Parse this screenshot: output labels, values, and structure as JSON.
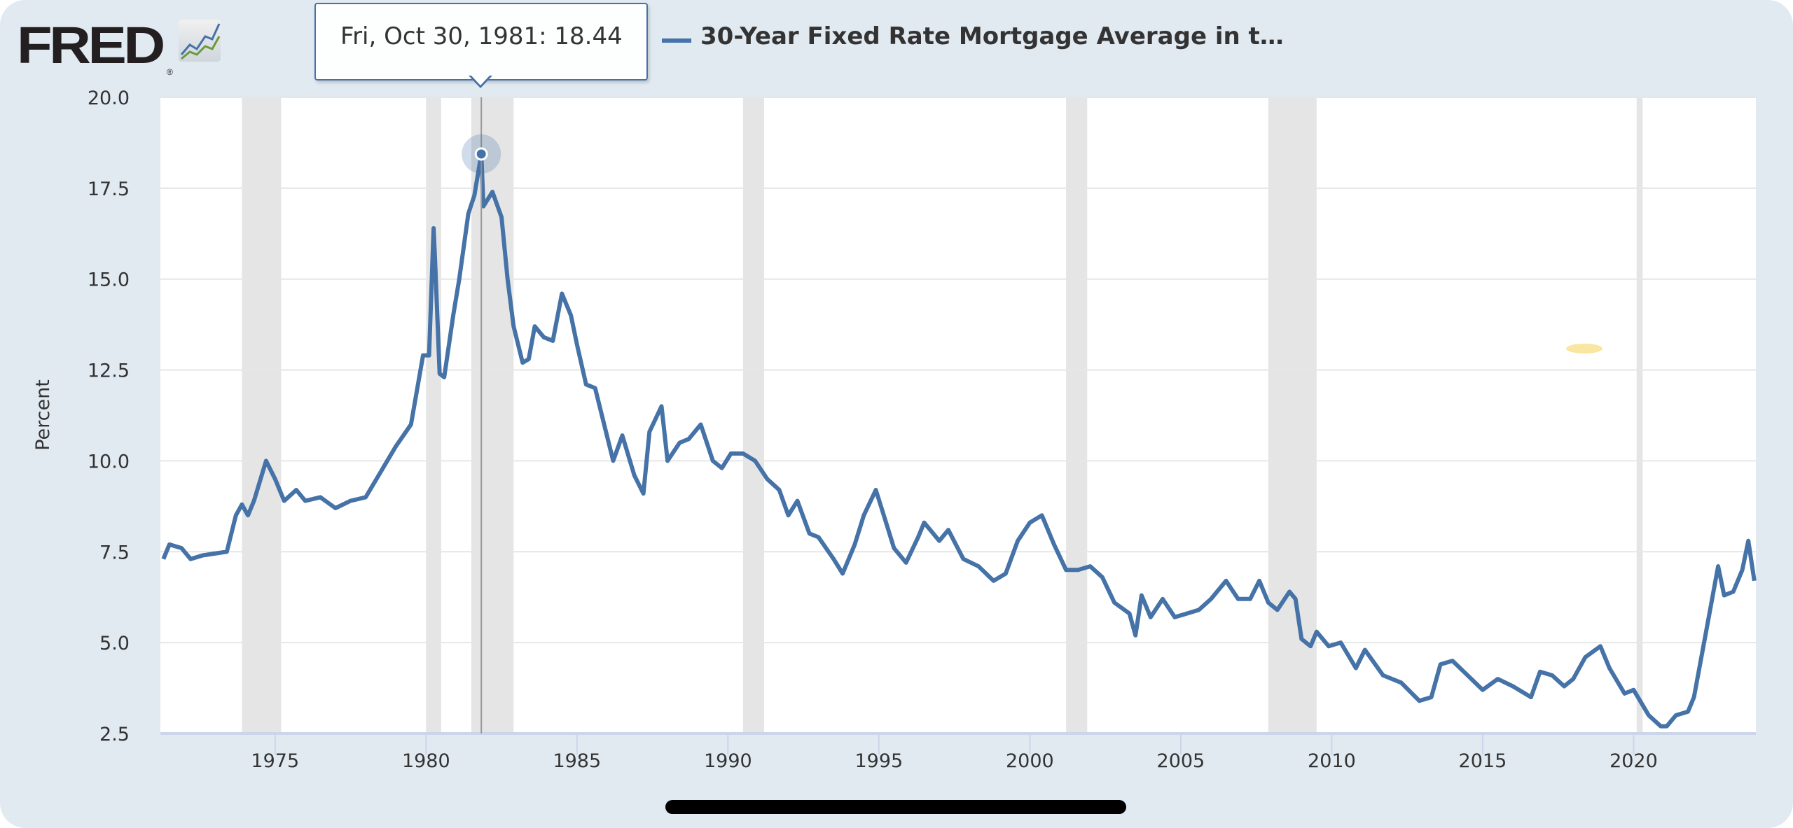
{
  "header": {
    "logo": "FRED",
    "logo_icon": "chart-lines-icon",
    "title": "30-Year Fixed Rate Mortgage Average in t…"
  },
  "tooltip": {
    "text": "Fri, Oct 30, 1981: 18.44"
  },
  "colors": {
    "series": "#4572a7",
    "recession": "#e5e5e5",
    "background": "#e1e9f1"
  },
  "chart_data": {
    "type": "line",
    "title": "30-Year Fixed Rate Mortgage Average in t…",
    "ylabel": "Percent",
    "xlabel": "",
    "ylim": [
      2.5,
      20.0
    ],
    "xlim": [
      1971.2,
      2024.05
    ],
    "yticks": [
      "2.5",
      "5.0",
      "7.5",
      "10.0",
      "12.5",
      "15.0",
      "17.5",
      "20.0"
    ],
    "xticks": [
      "1975",
      "1980",
      "1985",
      "1990",
      "1995",
      "2000",
      "2005",
      "2010",
      "2015",
      "2020"
    ],
    "grid": true,
    "legend": "top-left",
    "recessions": [
      [
        1973.9,
        1975.2
      ],
      [
        1980.0,
        1980.5
      ],
      [
        1981.5,
        1982.9
      ],
      [
        1990.5,
        1991.2
      ],
      [
        2001.2,
        2001.9
      ],
      [
        2007.9,
        2009.5
      ],
      [
        2020.1,
        2020.3
      ]
    ],
    "highlight": {
      "date": "Fri, Oct 30, 1981",
      "x": 1981.83,
      "y": 18.44
    },
    "x": [
      1971.3,
      1971.5,
      1971.9,
      1972.2,
      1972.6,
      1973.0,
      1973.4,
      1973.7,
      1973.9,
      1974.1,
      1974.3,
      1974.7,
      1975.0,
      1975.3,
      1975.7,
      1976.0,
      1976.5,
      1977.0,
      1977.5,
      1978.0,
      1978.5,
      1979.0,
      1979.5,
      1979.9,
      1980.1,
      1980.25,
      1980.3,
      1980.45,
      1980.6,
      1980.9,
      1981.1,
      1981.4,
      1981.6,
      1981.83,
      1981.9,
      1982.2,
      1982.5,
      1982.7,
      1982.9,
      1983.2,
      1983.4,
      1983.6,
      1983.9,
      1984.2,
      1984.5,
      1984.8,
      1985.0,
      1985.3,
      1985.6,
      1985.9,
      1986.2,
      1986.5,
      1986.9,
      1987.2,
      1987.4,
      1987.8,
      1988.0,
      1988.4,
      1988.7,
      1989.1,
      1989.5,
      1989.8,
      1990.1,
      1990.5,
      1990.9,
      1991.3,
      1991.7,
      1992.0,
      1992.3,
      1992.7,
      1993.0,
      1993.5,
      1993.8,
      1994.2,
      1994.5,
      1994.9,
      1995.2,
      1995.5,
      1995.9,
      1996.3,
      1996.5,
      1997.0,
      1997.3,
      1997.8,
      1998.3,
      1998.8,
      1999.2,
      1999.6,
      2000.0,
      2000.4,
      2000.8,
      2001.2,
      2001.6,
      2002.0,
      2002.4,
      2002.8,
      2003.3,
      2003.5,
      2003.7,
      2004.0,
      2004.4,
      2004.8,
      2005.2,
      2005.6,
      2006.0,
      2006.5,
      2006.9,
      2007.3,
      2007.6,
      2007.9,
      2008.2,
      2008.6,
      2008.8,
      2009.0,
      2009.3,
      2009.5,
      2009.9,
      2010.3,
      2010.8,
      2011.1,
      2011.7,
      2012.3,
      2012.9,
      2013.3,
      2013.6,
      2014.0,
      2014.5,
      2015.0,
      2015.5,
      2016.0,
      2016.6,
      2016.9,
      2017.3,
      2017.7,
      2018.0,
      2018.4,
      2018.9,
      2019.2,
      2019.7,
      2020.0,
      2020.5,
      2020.9,
      2021.1,
      2021.4,
      2021.8,
      2022.0,
      2022.4,
      2022.8,
      2023.0,
      2023.3,
      2023.6,
      2023.8,
      2024.0
    ],
    "values": [
      7.3,
      7.7,
      7.6,
      7.3,
      7.4,
      7.45,
      7.5,
      8.5,
      8.8,
      8.5,
      8.9,
      10.0,
      9.5,
      8.9,
      9.2,
      8.9,
      9.0,
      8.7,
      8.9,
      9.0,
      9.7,
      10.4,
      11.0,
      12.9,
      12.9,
      16.4,
      15.5,
      12.4,
      12.3,
      14.0,
      15.0,
      16.8,
      17.3,
      18.44,
      17.0,
      17.4,
      16.7,
      15.0,
      13.7,
      12.7,
      12.8,
      13.7,
      13.4,
      13.3,
      14.6,
      14.0,
      13.2,
      12.1,
      12.0,
      11.0,
      10.0,
      10.7,
      9.6,
      9.1,
      10.8,
      11.5,
      10.0,
      10.5,
      10.6,
      11.0,
      10.0,
      9.8,
      10.2,
      10.2,
      10.0,
      9.5,
      9.2,
      8.5,
      8.9,
      8.0,
      7.9,
      7.3,
      6.9,
      7.7,
      8.5,
      9.2,
      8.4,
      7.6,
      7.2,
      7.9,
      8.3,
      7.8,
      8.1,
      7.3,
      7.1,
      6.7,
      6.9,
      7.8,
      8.3,
      8.5,
      7.7,
      7.0,
      7.0,
      7.1,
      6.8,
      6.1,
      5.8,
      5.2,
      6.3,
      5.7,
      6.2,
      5.7,
      5.8,
      5.9,
      6.2,
      6.7,
      6.2,
      6.2,
      6.7,
      6.1,
      5.9,
      6.4,
      6.2,
      5.1,
      4.9,
      5.3,
      4.9,
      5.0,
      4.3,
      4.8,
      4.1,
      3.9,
      3.4,
      3.5,
      4.4,
      4.5,
      4.1,
      3.7,
      4.0,
      3.8,
      3.5,
      4.2,
      4.1,
      3.8,
      4.0,
      4.6,
      4.9,
      4.3,
      3.6,
      3.7,
      3.0,
      2.7,
      2.7,
      3.0,
      3.1,
      3.5,
      5.3,
      7.1,
      6.3,
      6.4,
      7.0,
      7.8,
      6.7
    ]
  }
}
